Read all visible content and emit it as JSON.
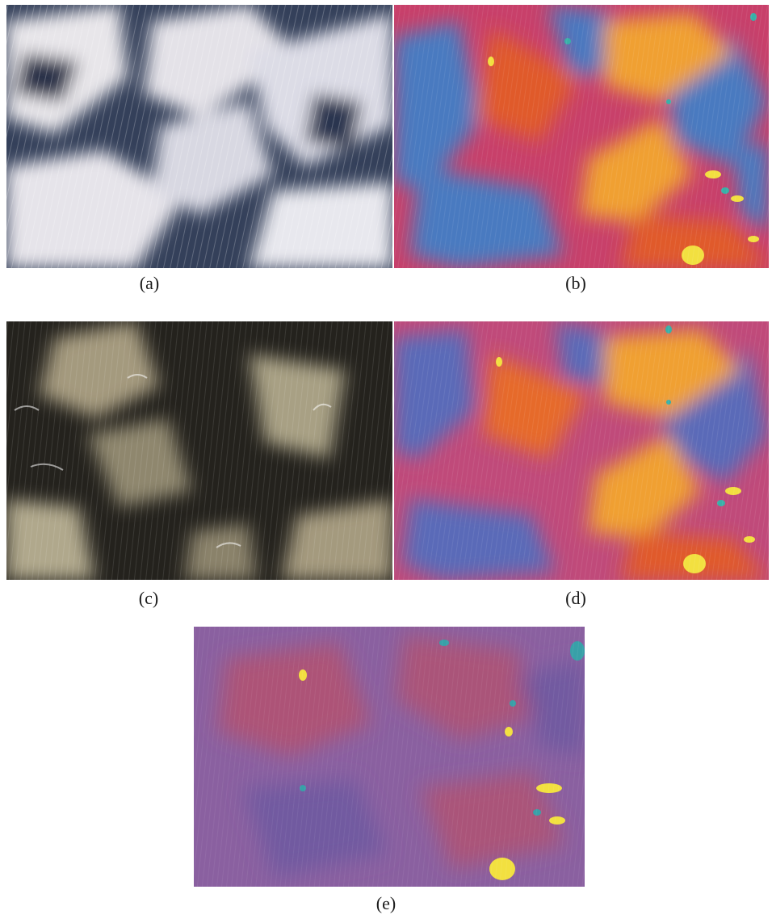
{
  "figure": {
    "panels": [
      {
        "id": "a",
        "caption": "(a)",
        "image": "micrograph-grayscale-texture",
        "colors": [
          "#2b3850",
          "#e8e6ea",
          "#c8ccd8",
          "#384a6a"
        ]
      },
      {
        "id": "b",
        "caption": "(b)",
        "image": "micrograph-color-texture",
        "colors": [
          "#4a7ac0",
          "#e05a2a",
          "#f0a030",
          "#c8406a",
          "#f2e040",
          "#38b0a8"
        ]
      },
      {
        "id": "c",
        "caption": "(c)",
        "image": "micrograph-dark-texture",
        "colors": [
          "#1c1a16",
          "#a49a7e",
          "#cfc7ae",
          "#3a3730"
        ]
      },
      {
        "id": "d",
        "caption": "(d)",
        "image": "micrograph-color-texture",
        "colors": [
          "#5a6ab8",
          "#e66a2a",
          "#f0a030",
          "#c04a7a",
          "#f2e040",
          "#38b0a8"
        ]
      },
      {
        "id": "e",
        "caption": "(e)",
        "image": "micrograph-muted-color-texture",
        "colors": [
          "#8a60a0",
          "#b8506a",
          "#6a58a0",
          "#f2e040",
          "#38a0a8"
        ]
      }
    ]
  }
}
